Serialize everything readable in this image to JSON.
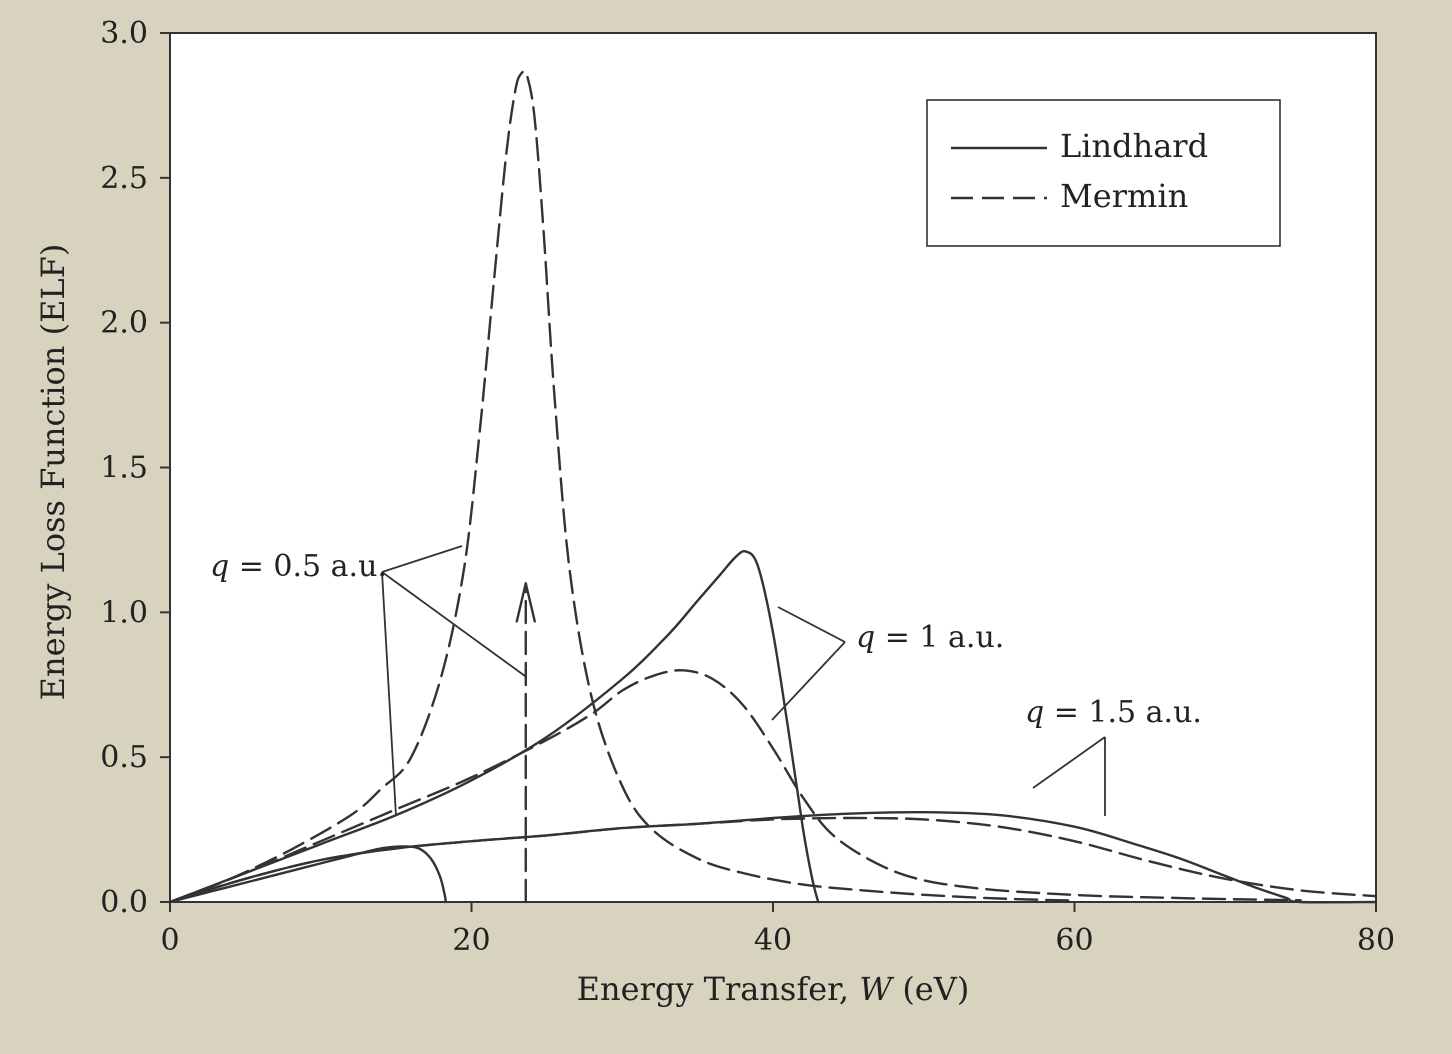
{
  "chart_data": {
    "type": "line",
    "xlabel": {
      "prefix": "Energy Transfer, ",
      "var": "W",
      "suffix": " (eV)"
    },
    "ylabel": "Energy Loss Function (ELF)",
    "xlim": [
      0,
      80
    ],
    "ylim": [
      0,
      3.0
    ],
    "x_ticks": [
      "0",
      "20",
      "40",
      "60",
      "80"
    ],
    "y_ticks": [
      "0.0",
      "0.5",
      "1.0",
      "1.5",
      "2.0",
      "2.5",
      "3.0"
    ],
    "grid": false,
    "legend": {
      "position": "top-right",
      "entries": [
        {
          "label": "Lindhard",
          "style": "solid"
        },
        {
          "label": "Mermin",
          "style": "dashed"
        }
      ]
    },
    "annotations": [
      {
        "var": "q",
        "text": " = 0.5 a.u."
      },
      {
        "var": "q",
        "text": " = 1 a.u."
      },
      {
        "var": "q",
        "text": " = 1.5 a.u."
      }
    ],
    "series": [
      {
        "group": "q = 0.5 a.u.",
        "style": "solid",
        "x": [
          0,
          3,
          6,
          9,
          12,
          14,
          15.5,
          16.5,
          17.3,
          17.9,
          18.2,
          18.3
        ],
        "y": [
          0,
          0.04,
          0.08,
          0.12,
          0.16,
          0.185,
          0.192,
          0.185,
          0.15,
          0.09,
          0.03,
          0
        ]
      },
      {
        "group": "q = 0.5 a.u.",
        "style": "dashed",
        "x": [
          0,
          4,
          8,
          12,
          14,
          16,
          18,
          19.5,
          20.5,
          21.5,
          22.3,
          22.9,
          23.3,
          23.7,
          24.2,
          24.8,
          25.5,
          26.5,
          28,
          30,
          32,
          35,
          38,
          42,
          46,
          50,
          55,
          60
        ],
        "y": [
          0,
          0.08,
          0.18,
          0.3,
          0.39,
          0.5,
          0.78,
          1.15,
          1.6,
          2.15,
          2.58,
          2.8,
          2.86,
          2.85,
          2.7,
          2.3,
          1.75,
          1.15,
          0.7,
          0.4,
          0.25,
          0.15,
          0.1,
          0.06,
          0.04,
          0.025,
          0.012,
          0.005
        ]
      },
      {
        "group": "q = 0.5 a.u.",
        "style": "delta",
        "x": [
          23.6
        ],
        "y": [
          1.1
        ]
      },
      {
        "group": "q = 1 a.u.",
        "style": "solid",
        "x": [
          0,
          5,
          10,
          15,
          20,
          25,
          30,
          33,
          35,
          36.5,
          37.5,
          38.2,
          39,
          40,
          41,
          42,
          42.6,
          43
        ],
        "y": [
          0,
          0.1,
          0.2,
          0.3,
          0.42,
          0.57,
          0.77,
          0.92,
          1.04,
          1.13,
          1.19,
          1.21,
          1.16,
          0.93,
          0.6,
          0.25,
          0.08,
          0
        ]
      },
      {
        "group": "q = 1 a.u.",
        "style": "dashed",
        "x": [
          0,
          5,
          10,
          15,
          20,
          25,
          28,
          30,
          32,
          34,
          36,
          38,
          40,
          42,
          44,
          47,
          50,
          54,
          58,
          62,
          66,
          70,
          75
        ],
        "y": [
          0,
          0.1,
          0.21,
          0.32,
          0.43,
          0.56,
          0.65,
          0.73,
          0.78,
          0.8,
          0.77,
          0.68,
          0.53,
          0.36,
          0.23,
          0.13,
          0.075,
          0.045,
          0.03,
          0.02,
          0.015,
          0.01,
          0.006
        ]
      },
      {
        "group": "q = 1.5 a.u.",
        "style": "solid",
        "x": [
          0,
          5,
          10,
          15,
          20,
          25,
          30,
          35,
          40,
          45,
          50,
          55,
          60,
          64,
          67,
          70,
          72,
          74,
          75,
          80
        ],
        "y": [
          0,
          0.08,
          0.145,
          0.185,
          0.21,
          0.23,
          0.255,
          0.27,
          0.29,
          0.305,
          0.31,
          0.3,
          0.26,
          0.2,
          0.15,
          0.09,
          0.05,
          0.015,
          0,
          0
        ]
      },
      {
        "group": "q = 1.5 a.u.",
        "style": "dashed",
        "x": [
          0,
          5,
          10,
          15,
          20,
          25,
          30,
          35,
          40,
          45,
          50,
          55,
          60,
          65,
          70,
          75,
          80
        ],
        "y": [
          0,
          0.08,
          0.145,
          0.185,
          0.21,
          0.23,
          0.255,
          0.27,
          0.285,
          0.29,
          0.285,
          0.26,
          0.21,
          0.14,
          0.08,
          0.04,
          0.02
        ]
      }
    ]
  }
}
